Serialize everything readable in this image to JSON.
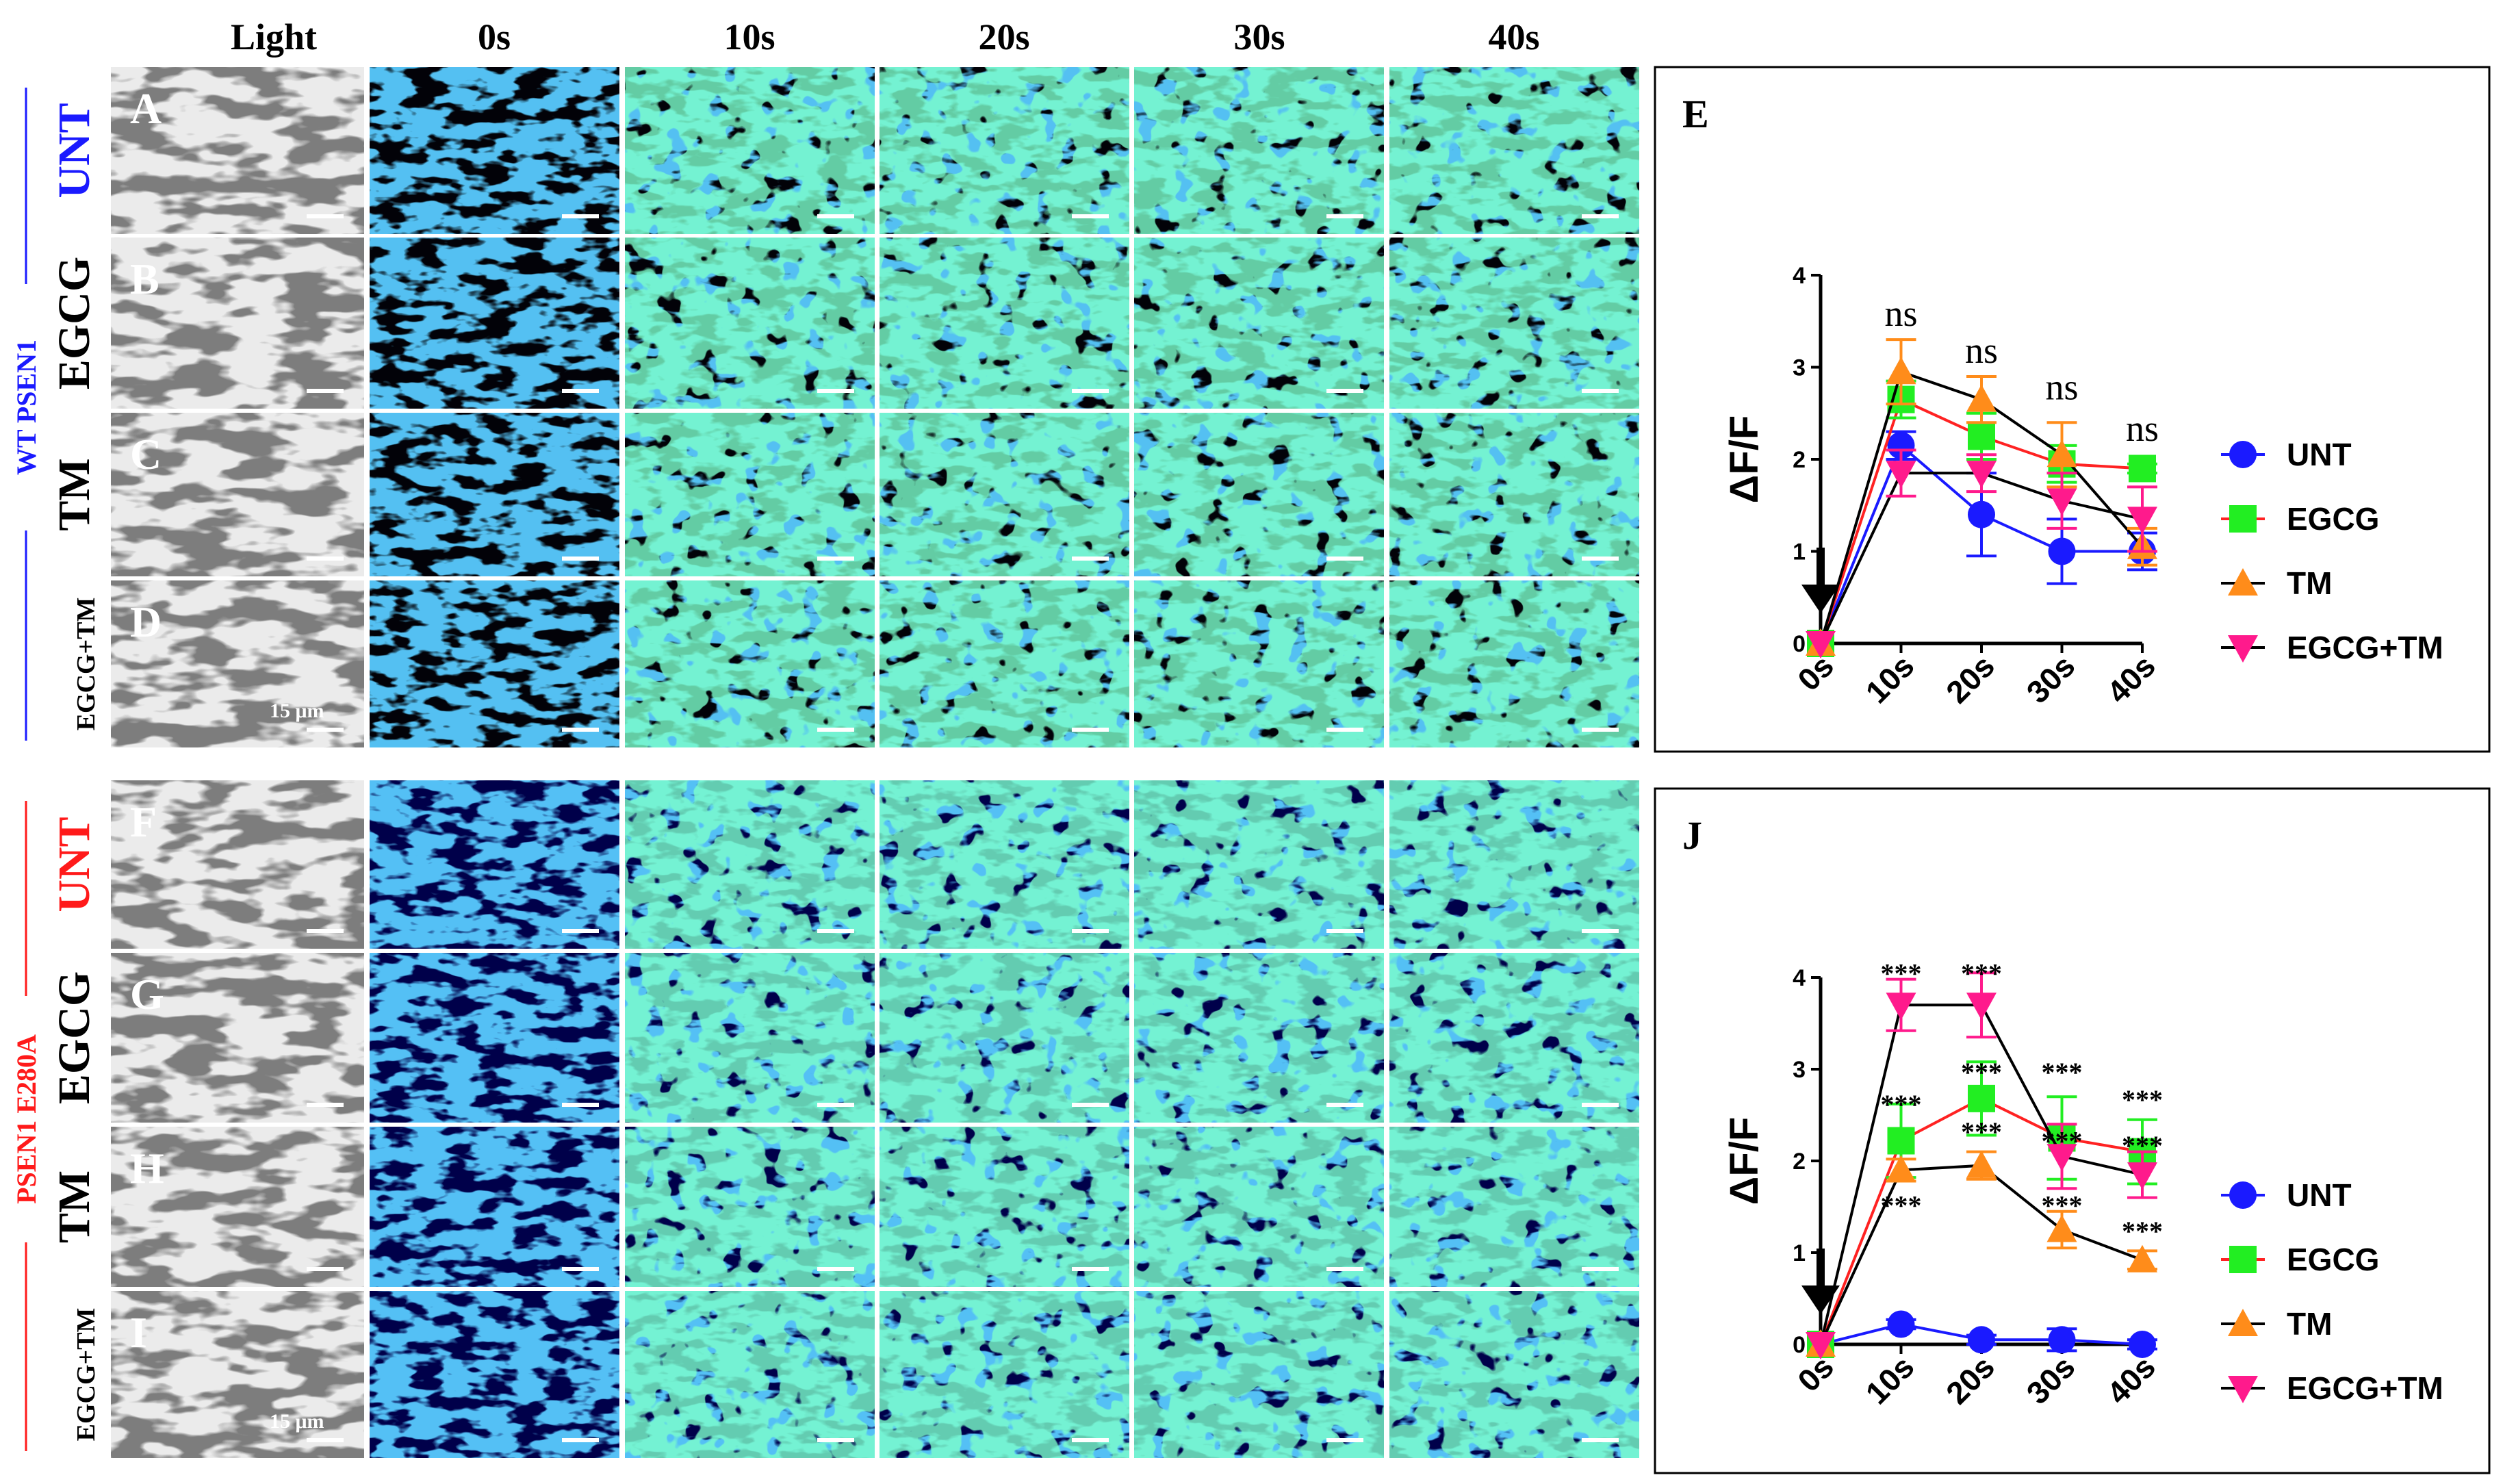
{
  "figure": {
    "column_headers": [
      "Light",
      "0s",
      "10s",
      "20s",
      "30s",
      "40s"
    ],
    "groups": [
      {
        "name": "WT PSEN1",
        "color": "#1a1aff",
        "rows": [
          {
            "letter": "A",
            "condition": "UNT",
            "condition_color": "#1a1aff"
          },
          {
            "letter": "B",
            "condition": "EGCG",
            "condition_color": "#000000"
          },
          {
            "letter": "C",
            "condition": "TM",
            "condition_color": "#000000"
          },
          {
            "letter": "D",
            "condition": "EGCG+TM",
            "condition_color": "#000000",
            "scale_label": "15 μm"
          }
        ]
      },
      {
        "name": "PSEN1 E280A",
        "color": "#ff1a1a",
        "rows": [
          {
            "letter": "F",
            "condition": "UNT",
            "condition_color": "#ff1a1a"
          },
          {
            "letter": "G",
            "condition": "EGCG",
            "condition_color": "#000000"
          },
          {
            "letter": "H",
            "condition": "TM",
            "condition_color": "#000000"
          },
          {
            "letter": "I",
            "condition": "EGCG+TM",
            "condition_color": "#000000",
            "scale_label": "15 μm"
          }
        ]
      }
    ]
  },
  "chart_data": [
    {
      "panel": "E",
      "type": "line",
      "ylabel": "ΔF/F",
      "xlabel": "",
      "categories": [
        "0s",
        "10s",
        "20s",
        "30s",
        "40s"
      ],
      "ylim": [
        0,
        4
      ],
      "yticks": [
        "0",
        "1",
        "2",
        "3",
        "4"
      ],
      "series": [
        {
          "name": "UNT",
          "marker": "circle",
          "color": "#1a1aff",
          "line_color": "#1a1aff",
          "values": [
            0,
            2.15,
            1.4,
            1.0,
            1.0
          ],
          "errors": [
            0,
            0.15,
            0.45,
            0.35,
            0.2
          ]
        },
        {
          "name": "EGCG",
          "marker": "square",
          "color": "#22ee22",
          "line_color": "#ff2222",
          "values": [
            0,
            2.65,
            2.25,
            1.95,
            1.9
          ],
          "errors": [
            0,
            0.2,
            0.25,
            0.2,
            0.05
          ]
        },
        {
          "name": "TM",
          "marker": "triangle-up",
          "color": "#ff8c1a",
          "line_color": "#000000",
          "values": [
            0,
            2.95,
            2.65,
            2.05,
            1.05
          ],
          "errors": [
            0,
            0.35,
            0.25,
            0.35,
            0.2
          ]
        },
        {
          "name": "EGCG+TM",
          "marker": "triangle-down",
          "color": "#ff1a8c",
          "line_color": "#000000",
          "values": [
            0,
            1.85,
            1.85,
            1.55,
            1.35
          ],
          "errors": [
            0,
            0.25,
            0.2,
            0.3,
            0.35
          ]
        }
      ],
      "annotations": [
        {
          "text": "ns",
          "x": "10s",
          "y": 3.45
        },
        {
          "text": "ns",
          "x": "20s",
          "y": 3.05
        },
        {
          "text": "ns",
          "x": "30s",
          "y": 2.65
        },
        {
          "text": "ns",
          "x": "40s",
          "y": 2.2
        }
      ],
      "arrow_at": "0s"
    },
    {
      "panel": "J",
      "type": "line",
      "ylabel": "ΔF/F",
      "xlabel": "",
      "categories": [
        "0s",
        "10s",
        "20s",
        "30s",
        "40s"
      ],
      "ylim": [
        0,
        4
      ],
      "yticks": [
        "0",
        "1",
        "2",
        "3",
        "4"
      ],
      "series": [
        {
          "name": "UNT",
          "marker": "circle",
          "color": "#1a1aff",
          "line_color": "#1a1aff",
          "values": [
            0,
            0.22,
            0.05,
            0.05,
            0.0
          ],
          "errors": [
            0,
            0.05,
            0.05,
            0.12,
            0.05
          ]
        },
        {
          "name": "EGCG",
          "marker": "square",
          "color": "#22ee22",
          "line_color": "#ff2222",
          "values": [
            0,
            2.22,
            2.68,
            2.25,
            2.1
          ],
          "errors": [
            0,
            0.4,
            0.4,
            0.45,
            0.35
          ]
        },
        {
          "name": "TM",
          "marker": "triangle-up",
          "color": "#ff8c1a",
          "line_color": "#000000",
          "values": [
            0,
            1.9,
            1.95,
            1.25,
            0.92
          ],
          "errors": [
            0,
            0.12,
            0.15,
            0.2,
            0.1
          ]
        },
        {
          "name": "EGCG+TM",
          "marker": "triangle-down",
          "color": "#ff1a8c",
          "line_color": "#000000",
          "values": [
            0,
            3.7,
            3.7,
            2.05,
            1.85
          ],
          "errors": [
            0,
            0.28,
            0.35,
            0.35,
            0.25
          ]
        }
      ],
      "annotations": [
        {
          "text": "***",
          "x": "10s",
          "y": 4.08
        },
        {
          "text": "***",
          "x": "20s",
          "y": 4.08
        },
        {
          "text": "***",
          "x": "10s",
          "y": 2.65
        },
        {
          "text": "***",
          "x": "20s",
          "y": 3.0
        },
        {
          "text": "***",
          "x": "30s",
          "y": 3.0
        },
        {
          "text": "***",
          "x": "40s",
          "y": 2.7
        },
        {
          "text": "***",
          "x": "20s",
          "y": 2.35
        },
        {
          "text": "***",
          "x": "30s",
          "y": 2.25
        },
        {
          "text": "***",
          "x": "40s",
          "y": 2.2
        },
        {
          "text": "***",
          "x": "10s",
          "y": 1.55
        },
        {
          "text": "***",
          "x": "30s",
          "y": 1.55
        },
        {
          "text": "***",
          "x": "40s",
          "y": 1.27
        }
      ],
      "arrow_at": "0s"
    }
  ]
}
